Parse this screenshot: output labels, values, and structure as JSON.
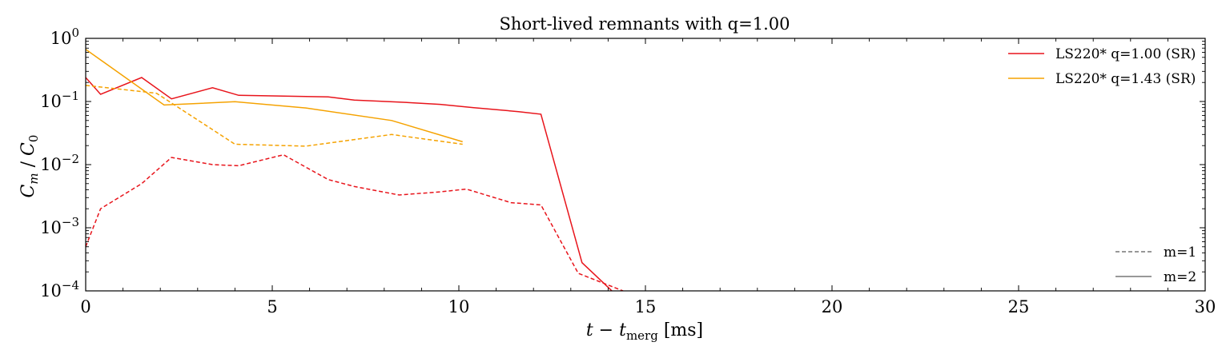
{
  "chart_data": {
    "type": "line",
    "title": "Short-lived remnants with q=1.00",
    "xlabel": "t − t_merg [ms]",
    "ylabel": "C_m / C_0",
    "xlim": [
      0,
      30
    ],
    "ylim": [
      0.0001,
      1
    ],
    "yscale": "log",
    "grid": false,
    "legend_placement": "top-right",
    "x_ticks": [
      0,
      5,
      10,
      15,
      20,
      25,
      30
    ],
    "x_tick_labels": [
      "0",
      "5",
      "10",
      "15",
      "20",
      "25",
      "30"
    ],
    "y_ticks": [
      0.0001,
      0.001,
      0.01,
      0.1,
      1
    ],
    "y_tick_bases": [
      "10",
      "10",
      "10",
      "10",
      "10"
    ],
    "y_tick_exps": [
      "−4",
      "−3",
      "−2",
      "−1",
      "0"
    ],
    "series": [
      {
        "name": "LS220* q=1.00 (SR)",
        "mode": "m=2",
        "color": "#e8141b",
        "dash": "solid",
        "x": [
          0,
          0.4,
          1.5,
          2.3,
          3.4,
          4.1,
          5.3,
          6.5,
          7.2,
          8.4,
          9.5,
          10.4,
          11.6,
          12.2,
          13.3,
          14.1
        ],
        "y": [
          0.24,
          0.13,
          0.24,
          0.11,
          0.165,
          0.125,
          0.122,
          0.118,
          0.105,
          0.098,
          0.09,
          0.08,
          0.069,
          0.063,
          0.00028,
          0.0001
        ]
      },
      {
        "name": "",
        "mode": "m=1",
        "color": "#e8141b",
        "dash": "dashed",
        "x": [
          0,
          0.4,
          1.5,
          2.3,
          3.4,
          4.1,
          5.3,
          6.5,
          7.2,
          8.4,
          9.5,
          10.2,
          11.4,
          12.2,
          13.2,
          14.4
        ],
        "y": [
          0.0005,
          0.002,
          0.005,
          0.013,
          0.01,
          0.0096,
          0.0143,
          0.0058,
          0.0045,
          0.0033,
          0.0037,
          0.0041,
          0.0025,
          0.0023,
          0.00019,
          0.0001
        ]
      },
      {
        "name": "LS220* q=1.43 (SR)",
        "mode": "m=2",
        "color": "#f5a200",
        "dash": "solid",
        "x": [
          0,
          2.1,
          4.0,
          5.9,
          8.2,
          10.1
        ],
        "y": [
          0.67,
          0.088,
          0.099,
          0.079,
          0.05,
          0.023
        ]
      },
      {
        "name": "",
        "mode": "m=1",
        "color": "#f5a200",
        "dash": "dashed",
        "x": [
          0,
          1.9,
          4.0,
          5.9,
          8.2,
          10.1
        ],
        "y": [
          0.18,
          0.135,
          0.021,
          0.0196,
          0.03,
          0.021
        ]
      }
    ],
    "legend_lines": [
      "LS220* q=1.00 (SR)",
      "LS220* q=1.43 (SR)"
    ],
    "legend_styles": [
      "m=1",
      "m=2"
    ]
  }
}
